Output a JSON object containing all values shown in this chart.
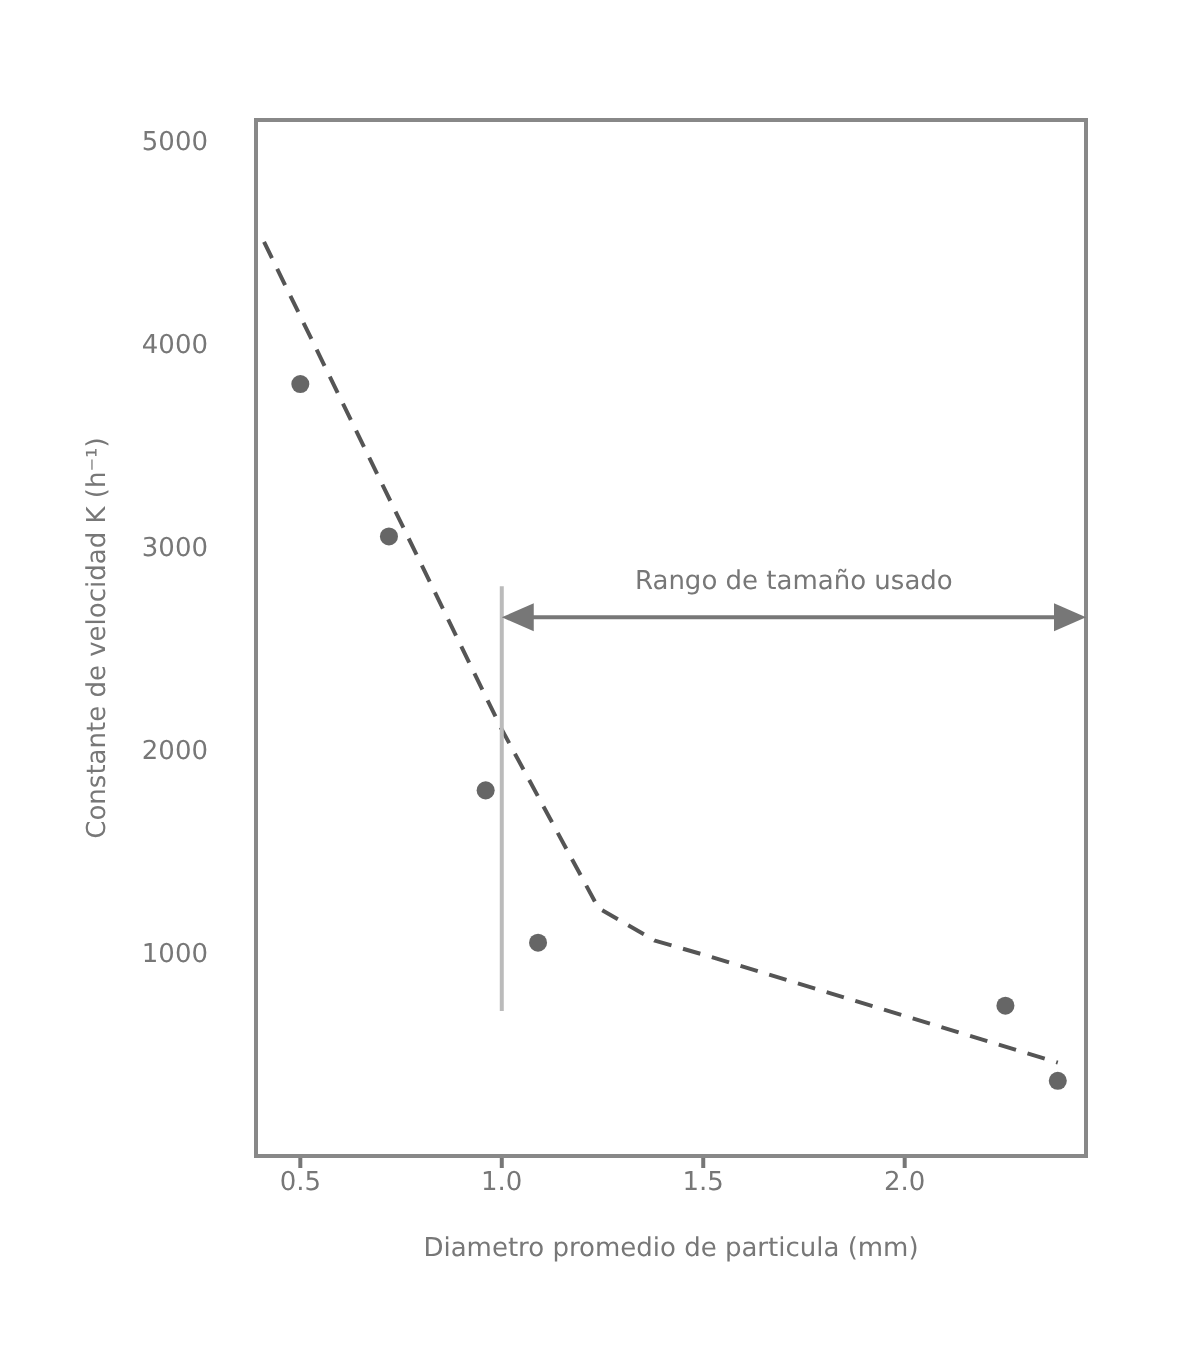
{
  "chart_data": {
    "type": "scatter",
    "xlabel": "Diametro promedio de particula (mm)",
    "ylabel": "Constante de velocidad K (h⁻¹)",
    "xlim": [
      0.39,
      2.45
    ],
    "xticks": [
      0.5,
      {
        "value": 1,
        "label": "1.0"
      },
      1.5,
      {
        "value": 2,
        "label": "2.0"
      }
    ],
    "ylim": [
      0,
      5100
    ],
    "yticks": [
      1000,
      2000,
      3000,
      4000,
      5000
    ],
    "grid": false,
    "marker": "circle",
    "annotations": [
      "Rango de tamaño usado"
    ],
    "ref_lines": [
      {
        "axis": "x",
        "value": 1.0,
        "color": "#bbbbbb"
      }
    ],
    "series": [
      {
        "color": "#666666",
        "x": [
          0.5,
          0.72,
          0.96,
          1.09,
          2.25,
          2.38
        ],
        "values": [
          3800,
          3050,
          1800,
          1050,
          740,
          370
        ]
      },
      {
        "type": "line",
        "color": "#555555",
        "line_style": "dashed",
        "marker": "none",
        "x": [
          0.41,
          1.0,
          1.24,
          1.38,
          1.52,
          2.38
        ],
        "values": [
          4500,
          2100,
          1220,
          1060,
          980,
          460
        ]
      }
    ]
  }
}
